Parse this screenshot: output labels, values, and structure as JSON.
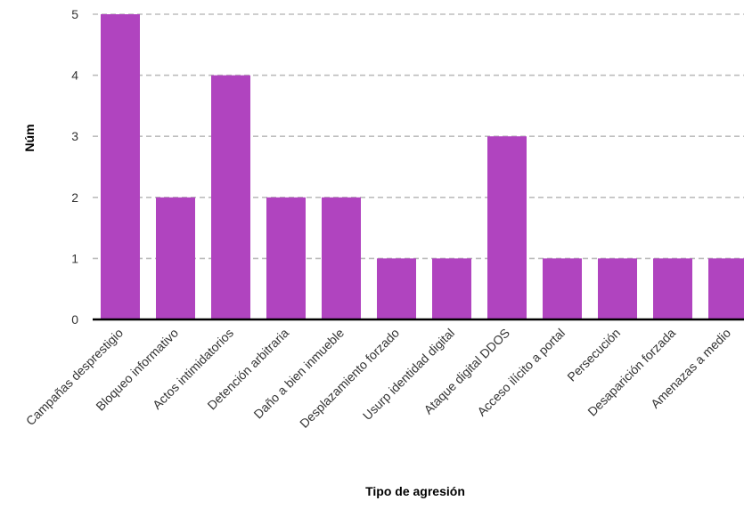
{
  "chart_data": {
    "type": "bar",
    "categories": [
      "Campañas desprestigio",
      "Bloqueo informativo",
      "Actos intimidatorios",
      "Detención arbitraria",
      "Daño a bien inmueble",
      "Desplazamiento forzado",
      "Usurp identidad digital",
      "Ataque digital DDOS",
      "Acceso ilícito a portal",
      "Persecución",
      "Desaparición forzada",
      "Amenazas a medio"
    ],
    "values": [
      5,
      2,
      4,
      2,
      2,
      1,
      1,
      3,
      1,
      1,
      1,
      1
    ],
    "xlabel": "Tipo de agresión",
    "ylabel": "Núm",
    "ylim": [
      0,
      5
    ],
    "yticks": [
      0,
      1,
      2,
      3,
      4,
      5
    ],
    "grid": true,
    "bar_color": "#b044bf"
  }
}
